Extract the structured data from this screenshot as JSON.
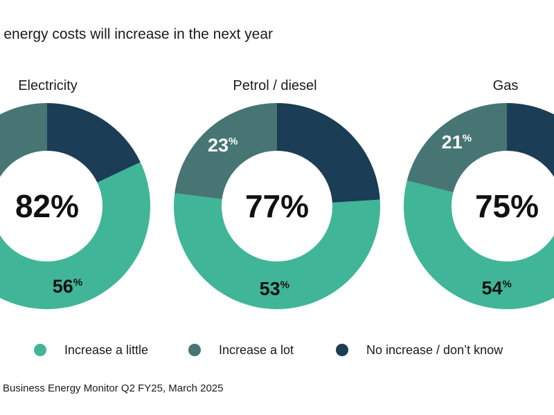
{
  "title": "at energy costs will increase in the next year",
  "source": "Business Energy Monitor Q2 FY25, March 2025",
  "colors": {
    "increase_little": "#41b597",
    "increase_lot": "#467573",
    "no_increase": "#1b3d55"
  },
  "legend": [
    {
      "label": "Increase a little",
      "color": "#41b597"
    },
    {
      "label": "Increase a lot",
      "color": "#467573"
    },
    {
      "label": "No increase / don’t know",
      "color": "#1b3d55"
    }
  ],
  "chart_data": {
    "type": "pie",
    "donut": true,
    "series_names": [
      "Increase a little",
      "Increase a lot",
      "No increase / don’t know"
    ],
    "charts": [
      {
        "label": "Electricity",
        "total_label": "82%",
        "values": [
          56,
          26,
          18
        ],
        "value_labels": [
          "56%",
          "%",
          ""
        ]
      },
      {
        "label": "Petrol / diesel",
        "total_label": "77%",
        "values": [
          53,
          23,
          24
        ],
        "value_labels": [
          "53%",
          "23%",
          ""
        ]
      },
      {
        "label": "Gas",
        "total_label": "75%",
        "values": [
          54,
          21,
          25
        ],
        "value_labels": [
          "54%",
          "21%",
          ""
        ]
      }
    ],
    "legend_position": "bottom"
  }
}
